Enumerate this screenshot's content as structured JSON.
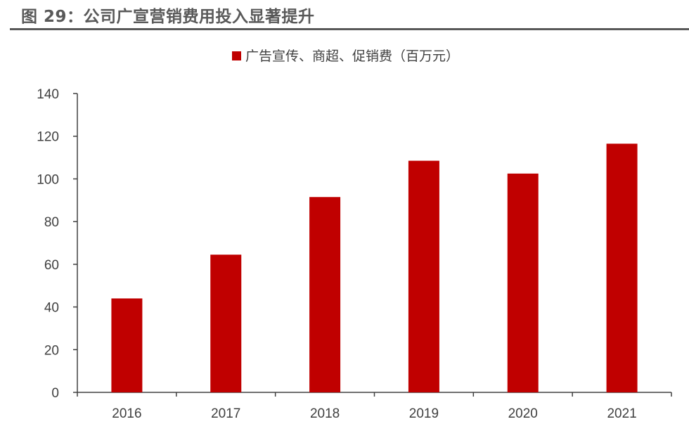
{
  "figure_title": "图 29：公司广宣营销费用投入显著提升",
  "colors": {
    "bar": "#c00000",
    "axis": "#404040",
    "title_rule": "#595959"
  },
  "chart_data": {
    "type": "bar",
    "title": "",
    "xlabel": "",
    "ylabel": "",
    "categories": [
      "2016",
      "2017",
      "2018",
      "2019",
      "2020",
      "2021"
    ],
    "series": [
      {
        "name": "广告宣传、商超、促销费（百万元）",
        "values": [
          44,
          64.5,
          91.5,
          108.5,
          102.5,
          116.5
        ]
      }
    ],
    "ylim": [
      0,
      140
    ],
    "yticks": [
      0,
      20,
      40,
      60,
      80,
      100,
      120,
      140
    ],
    "grid": false,
    "legend_position": "top-center"
  }
}
